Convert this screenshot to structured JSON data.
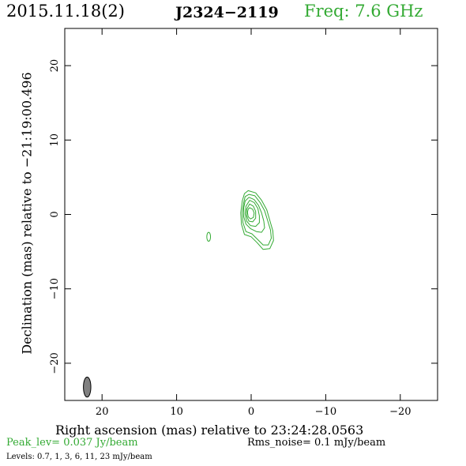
{
  "header": {
    "date": "2015.11.18(2)",
    "source": "J2324−2119",
    "freq": "Freq: 7.6 GHz"
  },
  "footer": {
    "peak": "Peak_lev=  0.037 Jy/beam",
    "rms": "Rms_noise=  0.1 mJy/beam",
    "levels": "Levels: 0.7,    1,    3,    6,   11,   23 mJy/beam"
  },
  "colors": {
    "contour": "#33aa33",
    "beam": "#808080",
    "title_green": "#33aa33"
  },
  "chart_data": {
    "type": "contour",
    "xlabel": "Right ascension (mas) relative to 23:24:28.0563",
    "ylabel": "Declination (mas) relative to −21:19:00.496",
    "xlim": [
      25,
      -25
    ],
    "ylim": [
      -25,
      25
    ],
    "x_ticks": [
      20,
      10,
      0,
      -10,
      -20
    ],
    "x_tick_labels": [
      "20",
      "10",
      "0",
      "−10",
      "−20"
    ],
    "y_ticks": [
      20,
      10,
      0,
      -10,
      -20
    ],
    "y_tick_labels": [
      "20",
      "10",
      "0",
      "−10",
      "−20"
    ],
    "levels_mJy_per_beam": [
      0.7,
      1,
      3,
      6,
      11,
      23
    ],
    "peak_Jy_per_beam": 0.037,
    "rms_mJy_per_beam": 0.1,
    "main_component": {
      "core_center": [
        0.2,
        0.2
      ],
      "contours": [
        {
          "level": 0.7,
          "points": [
            [
              0.4,
              3.2
            ],
            [
              -0.6,
              2.9
            ],
            [
              -1.4,
              1.9
            ],
            [
              -2.1,
              0.6
            ],
            [
              -2.5,
              -0.8
            ],
            [
              -2.9,
              -2.2
            ],
            [
              -3.0,
              -3.5
            ],
            [
              -2.5,
              -4.6
            ],
            [
              -1.6,
              -4.7
            ],
            [
              -0.8,
              -3.8
            ],
            [
              0,
              -3.0
            ],
            [
              0.9,
              -2.7
            ],
            [
              1.3,
              -1.3
            ],
            [
              1.4,
              0.2
            ],
            [
              1.2,
              1.8
            ],
            [
              0.9,
              2.8
            ]
          ]
        },
        {
          "level": 1,
          "points": [
            [
              0.3,
              2.7
            ],
            [
              -0.5,
              2.5
            ],
            [
              -1.2,
              1.6
            ],
            [
              -1.8,
              0.5
            ],
            [
              -2.2,
              -0.8
            ],
            [
              -2.6,
              -2.1
            ],
            [
              -2.7,
              -3.2
            ],
            [
              -2.3,
              -4.1
            ],
            [
              -1.6,
              -4.1
            ],
            [
              -0.9,
              -3.4
            ],
            [
              -0.1,
              -2.6
            ],
            [
              0.7,
              -2.3
            ],
            [
              1.1,
              -1.1
            ],
            [
              1.2,
              0.2
            ],
            [
              1.0,
              1.6
            ],
            [
              0.8,
              2.4
            ]
          ]
        },
        {
          "level": 3,
          "points": [
            [
              0.3,
              2.3
            ],
            [
              -0.4,
              2.0
            ],
            [
              -1.0,
              1.2
            ],
            [
              -1.4,
              0.2
            ],
            [
              -1.7,
              -0.9
            ],
            [
              -1.8,
              -1.8
            ],
            [
              -1.4,
              -2.4
            ],
            [
              -0.7,
              -2.3
            ],
            [
              0.1,
              -1.9
            ],
            [
              0.7,
              -1.3
            ],
            [
              1.0,
              -0.3
            ],
            [
              1.0,
              0.9
            ],
            [
              0.8,
              1.8
            ]
          ]
        },
        {
          "level": 6,
          "points": [
            [
              0.2,
              1.9
            ],
            [
              -0.4,
              1.6
            ],
            [
              -0.9,
              0.8
            ],
            [
              -1.1,
              -0.2
            ],
            [
              -1.1,
              -1.1
            ],
            [
              -0.6,
              -1.6
            ],
            [
              0.1,
              -1.5
            ],
            [
              0.6,
              -0.9
            ],
            [
              0.8,
              0.1
            ],
            [
              0.7,
              1.1
            ]
          ]
        },
        {
          "level": 11,
          "points": [
            [
              0.2,
              1.4
            ],
            [
              -0.3,
              1.1
            ],
            [
              -0.6,
              0.4
            ],
            [
              -0.6,
              -0.5
            ],
            [
              -0.2,
              -1.0
            ],
            [
              0.3,
              -0.9
            ],
            [
              0.6,
              -0.2
            ],
            [
              0.6,
              0.7
            ]
          ]
        },
        {
          "level": 23,
          "points": [
            [
              0.2,
              0.9
            ],
            [
              -0.2,
              0.7
            ],
            [
              -0.4,
              0.2
            ],
            [
              -0.3,
              -0.4
            ],
            [
              0.1,
              -0.6
            ],
            [
              0.4,
              -0.3
            ],
            [
              0.5,
              0.3
            ],
            [
              0.4,
              0.7
            ]
          ]
        }
      ]
    },
    "secondary_component": {
      "center": [
        5.7,
        -3.0
      ],
      "rx": 0.25,
      "ry": 0.6,
      "level": 0.7
    },
    "beam": {
      "center": [
        22.0,
        -23.2
      ],
      "major": 2.7,
      "minor": 1.0,
      "pa_deg": 0
    }
  }
}
